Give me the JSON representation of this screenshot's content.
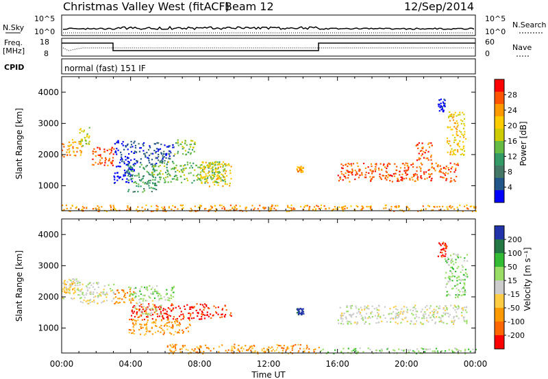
{
  "header": {
    "station": "Christmas Valley West (fitACF)",
    "beam": "Beam 12",
    "date": "12/Sep/2014"
  },
  "strips": {
    "nsky_label": "N.Sky",
    "nsky_ticks": [
      "10^5",
      "10^0"
    ],
    "nsearch_label": "N.Search",
    "nsearch_ticks": [
      "10^5",
      "10^0"
    ],
    "freq_label_1": "Freq.",
    "freq_label_2": "[MHz]",
    "freq_ticks": [
      "18",
      "8"
    ],
    "nave_label": "Nave",
    "nave_ticks": [
      "60",
      "0"
    ],
    "cpid_label": "CPID",
    "cpid_text": "normal (fast) 151 IF"
  },
  "chart_data": [
    {
      "type": "heatmap",
      "name": "power",
      "ylabel": "Slant Range [km]",
      "yticks": [
        1000,
        2000,
        3000,
        4000
      ],
      "ylim": [
        200,
        4500
      ],
      "xticks": [
        "00:00",
        "04:00",
        "08:00",
        "12:00",
        "16:00",
        "20:00",
        "00:00"
      ],
      "xlim_hours": [
        0,
        24
      ],
      "colorbar_label": "Power [dB]",
      "colorbar_ticks": [
        "28",
        "24",
        "20",
        "16",
        "12",
        "8",
        "4"
      ],
      "colorbar_colors": [
        "#ff0000",
        "#ff5500",
        "#ff9900",
        "#ffcc00",
        "#cccc00",
        "#66bb44",
        "#339966",
        "#447766",
        "#225588",
        "#0000ff"
      ],
      "regions": [
        {
          "t": [
            0.0,
            1.2
          ],
          "r": [
            1950,
            2500
          ],
          "level": 2
        },
        {
          "t": [
            1.0,
            1.6
          ],
          "r": [
            2300,
            2900
          ],
          "level": 4
        },
        {
          "t": [
            1.6,
            3.0
          ],
          "r": [
            1650,
            2250
          ],
          "level": 1
        },
        {
          "t": [
            3.0,
            4.2
          ],
          "r": [
            1100,
            2500
          ],
          "level": 9
        },
        {
          "t": [
            3.8,
            5.5
          ],
          "r": [
            800,
            1700
          ],
          "level": 6
        },
        {
          "t": [
            4.2,
            6.5
          ],
          "r": [
            1700,
            2400
          ],
          "level": 8
        },
        {
          "t": [
            5.2,
            9.5
          ],
          "r": [
            1100,
            1800
          ],
          "level": 5
        },
        {
          "t": [
            6.5,
            7.8
          ],
          "r": [
            2000,
            2500
          ],
          "level": 5
        },
        {
          "t": [
            8.0,
            9.8
          ],
          "r": [
            1000,
            1800
          ],
          "level": 3
        },
        {
          "t": [
            13.6,
            14.0
          ],
          "r": [
            1450,
            1650
          ],
          "level": 2
        },
        {
          "t": [
            16.0,
            23.0
          ],
          "r": [
            1150,
            1750
          ],
          "level": 1
        },
        {
          "t": [
            20.5,
            21.5
          ],
          "r": [
            1800,
            2400
          ],
          "level": 1
        },
        {
          "t": [
            21.8,
            22.2
          ],
          "r": [
            3400,
            3800
          ],
          "level": 9
        },
        {
          "t": [
            22.3,
            23.4
          ],
          "r": [
            2000,
            3400
          ],
          "level": 3
        },
        {
          "t": [
            0.0,
            24.0
          ],
          "r": [
            200,
            400
          ],
          "level": 2
        }
      ]
    },
    {
      "type": "heatmap",
      "name": "velocity",
      "ylabel": "Slant Range [km]",
      "yticks": [
        1000,
        2000,
        3000,
        4000
      ],
      "ylim": [
        200,
        4500
      ],
      "xticks": [
        "00:00",
        "04:00",
        "08:00",
        "12:00",
        "16:00",
        "20:00",
        "00:00"
      ],
      "xlim_hours": [
        0,
        24
      ],
      "xlabel": "Time UT",
      "colorbar_label": "Velocity [m s⁻¹]",
      "colorbar_ticks": [
        "200",
        "100",
        "50",
        "15",
        "-15",
        "-50",
        "-100",
        "-200"
      ],
      "colorbar_colors": [
        "#2233aa",
        "#227744",
        "#33bb33",
        "#99dd66",
        "#cccccc",
        "#ffcc44",
        "#ff9900",
        "#ff6600",
        "#ff0000"
      ],
      "regions": [
        {
          "t": [
            0.0,
            1.2
          ],
          "r": [
            1950,
            2600
          ],
          "level": 4
        },
        {
          "t": [
            0.0,
            0.8
          ],
          "r": [
            2100,
            2500
          ],
          "level": 5
        },
        {
          "t": [
            1.0,
            3.0
          ],
          "r": [
            1800,
            2500
          ],
          "level": 4
        },
        {
          "t": [
            3.0,
            4.2
          ],
          "r": [
            1800,
            2300
          ],
          "level": 6
        },
        {
          "t": [
            3.8,
            6.5
          ],
          "r": [
            1900,
            2400
          ],
          "level": 3
        },
        {
          "t": [
            4.0,
            9.8
          ],
          "r": [
            1300,
            1800
          ],
          "level": 8
        },
        {
          "t": [
            3.8,
            7.5
          ],
          "r": [
            800,
            1300
          ],
          "level": 6
        },
        {
          "t": [
            4.2,
            5.8
          ],
          "r": [
            1400,
            1900
          ],
          "level": 4
        },
        {
          "t": [
            13.6,
            14.0
          ],
          "r": [
            1450,
            1650
          ],
          "level": 0
        },
        {
          "t": [
            16.0,
            23.5
          ],
          "r": [
            1150,
            1750
          ],
          "level": 4
        },
        {
          "t": [
            21.8,
            22.3
          ],
          "r": [
            3300,
            3800
          ],
          "level": 8
        },
        {
          "t": [
            22.2,
            23.5
          ],
          "r": [
            2000,
            3400
          ],
          "level": 3
        },
        {
          "t": [
            6.0,
            15.0
          ],
          "r": [
            200,
            500
          ],
          "level": 6
        },
        {
          "t": [
            15.0,
            24.0
          ],
          "r": [
            200,
            380
          ],
          "level": 3
        }
      ]
    }
  ]
}
